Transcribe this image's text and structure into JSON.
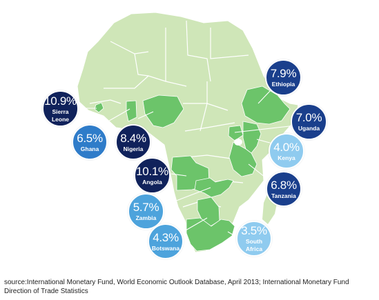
{
  "colors": {
    "land": "#cfe6b8",
    "land_border": "#ffffff",
    "highlight": "#6cc46a",
    "leader": "#ffffff",
    "navy": "#10225b",
    "dark_blue": "#1a3f8c",
    "mid_blue": "#2f7cc9",
    "sky_blue": "#4da3dc",
    "light_blue": "#8fcbef"
  },
  "highlighted_countries": [
    "Sierra Leone",
    "Ghana",
    "Nigeria",
    "Angola",
    "Zambia",
    "Botswana",
    "South Africa",
    "Ethiopia",
    "Uganda",
    "Kenya",
    "Tanzania"
  ],
  "callouts": [
    {
      "value": "10.9%",
      "name": "Sierra Leone",
      "name_lines": [
        "Sierra",
        "Leone"
      ],
      "color": "#10225b"
    },
    {
      "value": "6.5%",
      "name": "Ghana",
      "name_lines": [
        "Ghana"
      ],
      "color": "#2f7cc9"
    },
    {
      "value": "8.4%",
      "name": "Nigeria",
      "name_lines": [
        "Nigeria"
      ],
      "color": "#10225b"
    },
    {
      "value": "10.1%",
      "name": "Angola",
      "name_lines": [
        "Angola"
      ],
      "color": "#10225b"
    },
    {
      "value": "5.7%",
      "name": "Zambia",
      "name_lines": [
        "Zambia"
      ],
      "color": "#4da3dc"
    },
    {
      "value": "4.3%",
      "name": "Botswana",
      "name_lines": [
        "Botswana"
      ],
      "color": "#4da3dc"
    },
    {
      "value": "3.5%",
      "name": "South Africa",
      "name_lines": [
        "South",
        "Africa"
      ],
      "color": "#8fcbef"
    },
    {
      "value": "6.8%",
      "name": "Tanzania",
      "name_lines": [
        "Tanzania"
      ],
      "color": "#1a3f8c"
    },
    {
      "value": "4.0%",
      "name": "Kenya",
      "name_lines": [
        "Kenya"
      ],
      "color": "#8fcbef"
    },
    {
      "value": "7.0%",
      "name": "Uganda",
      "name_lines": [
        "Uganda"
      ],
      "color": "#1a3f8c"
    },
    {
      "value": "7.9%",
      "name": "Ethiopia",
      "name_lines": [
        "Ethiopia"
      ],
      "color": "#1a3f8c"
    }
  ],
  "source_text": "source:International Monetary Fund, World Economic Outlook Database, April 2013; International Monetary Fund Direction of Trade Statistics"
}
